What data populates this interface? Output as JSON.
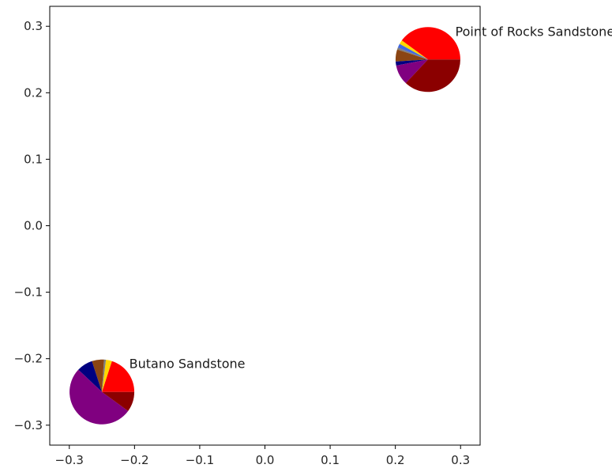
{
  "chart_data": {
    "type": "scatter",
    "title": "",
    "xlabel": "",
    "ylabel": "",
    "xlim": [
      -0.33,
      0.33
    ],
    "ylim": [
      -0.33,
      0.33
    ],
    "grid": false,
    "xticks": [
      -0.3,
      -0.2,
      -0.1,
      0.0,
      0.1,
      0.2,
      0.3
    ],
    "xtick_labels": [
      "−0.3",
      "−0.2",
      "−0.1",
      "0.0",
      "0.1",
      "0.2",
      "0.3"
    ],
    "yticks": [
      0.3,
      0.2,
      0.1,
      0.0,
      -0.1,
      -0.2,
      -0.3
    ],
    "ytick_labels": [
      "0.3",
      "0.2",
      "0.1",
      "0.0",
      "−0.1",
      "−0.2",
      "−0.3"
    ],
    "points": [
      {
        "label": "Point of Rocks Sandstone",
        "x": 0.25,
        "y": 0.25,
        "slices": [
          {
            "color": "#ff0000",
            "value": 0.4
          },
          {
            "color": "#ffd700",
            "value": 0.02
          },
          {
            "color": "#4169e1",
            "value": 0.02
          },
          {
            "color": "#7f7f7f",
            "value": 0.01
          },
          {
            "color": "#8b4513",
            "value": 0.06
          },
          {
            "color": "#000080",
            "value": 0.02
          },
          {
            "color": "#800080",
            "value": 0.1
          },
          {
            "color": "#8b0000",
            "value": 0.37
          }
        ]
      },
      {
        "label": "Butano Sandstone",
        "x": -0.25,
        "y": -0.25,
        "slices": [
          {
            "color": "#ff0000",
            "value": 0.2
          },
          {
            "color": "#ffd700",
            "value": 0.03
          },
          {
            "color": "#4169e1",
            "value": 0.0
          },
          {
            "color": "#7f7f7f",
            "value": 0.01
          },
          {
            "color": "#8b4513",
            "value": 0.06
          },
          {
            "color": "#000080",
            "value": 0.08
          },
          {
            "color": "#800080",
            "value": 0.52
          },
          {
            "color": "#8b0000",
            "value": 0.1
          }
        ]
      }
    ]
  }
}
